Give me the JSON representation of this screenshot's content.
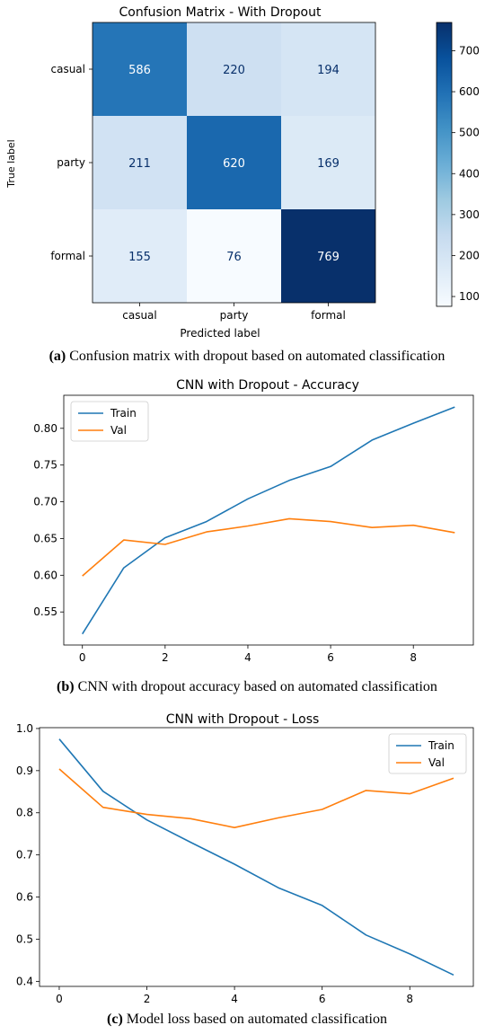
{
  "charts": {
    "confusion": {
      "title": "Confusion Matrix - With Dropout",
      "xlabel": "Predicted label",
      "ylabel": "True label",
      "caption_tag": "(a)",
      "caption_text": " Confusion matrix with dropout based on automated classification",
      "colorbar_ticks": [
        "100",
        "200",
        "300",
        "400",
        "500",
        "600",
        "700"
      ]
    },
    "accuracy": {
      "title": "CNN with Dropout - Accuracy",
      "caption_tag": "(b)",
      "caption_text": " CNN with dropout accuracy based on automated classification",
      "legend": [
        "Train",
        "Val"
      ]
    },
    "loss": {
      "title": "CNN with Dropout - Loss",
      "caption_tag": "(c)",
      "caption_text": " Model loss based on automated classification",
      "legend": [
        "Train",
        "Val"
      ]
    }
  },
  "chart_data": [
    {
      "type": "heatmap",
      "title": "Confusion Matrix - With Dropout",
      "xlabel": "Predicted label",
      "ylabel": "True label",
      "x_categories": [
        "casual",
        "party",
        "formal"
      ],
      "y_categories": [
        "casual",
        "party",
        "formal"
      ],
      "values": [
        [
          586,
          220,
          194
        ],
        [
          211,
          620,
          169
        ],
        [
          155,
          76,
          769
        ]
      ],
      "colormap": "Blues",
      "colorbar_range": [
        76,
        769
      ],
      "colorbar_ticks": [
        100,
        200,
        300,
        400,
        500,
        600,
        700
      ]
    },
    {
      "type": "line",
      "title": "CNN with Dropout - Accuracy",
      "x": [
        0,
        1,
        2,
        3,
        4,
        5,
        6,
        7,
        8,
        9
      ],
      "series": [
        {
          "name": "Train",
          "color": "#1f77b4",
          "values": [
            0.52,
            0.61,
            0.651,
            0.673,
            0.704,
            0.729,
            0.748,
            0.784,
            0.807,
            0.829
          ]
        },
        {
          "name": "Val",
          "color": "#ff7f0e",
          "values": [
            0.599,
            0.648,
            0.642,
            0.659,
            0.667,
            0.677,
            0.673,
            0.665,
            0.668,
            0.658
          ]
        }
      ],
      "xticks": [
        0,
        2,
        4,
        6,
        8
      ],
      "yticks": [
        0.55,
        0.6,
        0.65,
        0.7,
        0.75,
        0.8
      ],
      "xlim": [
        -0.45,
        9.45
      ],
      "ylim": [
        0.505,
        0.845
      ],
      "legend": "top-left"
    },
    {
      "type": "line",
      "title": "CNN with Dropout - Loss",
      "x": [
        0,
        1,
        2,
        3,
        4,
        5,
        6,
        7,
        8,
        9
      ],
      "series": [
        {
          "name": "Train",
          "color": "#1f77b4",
          "values": [
            0.975,
            0.851,
            0.783,
            0.73,
            0.678,
            0.622,
            0.58,
            0.51,
            0.465,
            0.415
          ]
        },
        {
          "name": "Val",
          "color": "#ff7f0e",
          "values": [
            0.904,
            0.813,
            0.796,
            0.786,
            0.765,
            0.788,
            0.808,
            0.853,
            0.845,
            0.882
          ]
        }
      ],
      "xticks": [
        0,
        2,
        4,
        6,
        8
      ],
      "yticks": [
        0.4,
        0.5,
        0.6,
        0.7,
        0.8,
        0.9,
        1.0
      ],
      "xlim": [
        -0.45,
        9.45
      ],
      "ylim": [
        0.388,
        1.002
      ],
      "legend": "top-right"
    }
  ]
}
